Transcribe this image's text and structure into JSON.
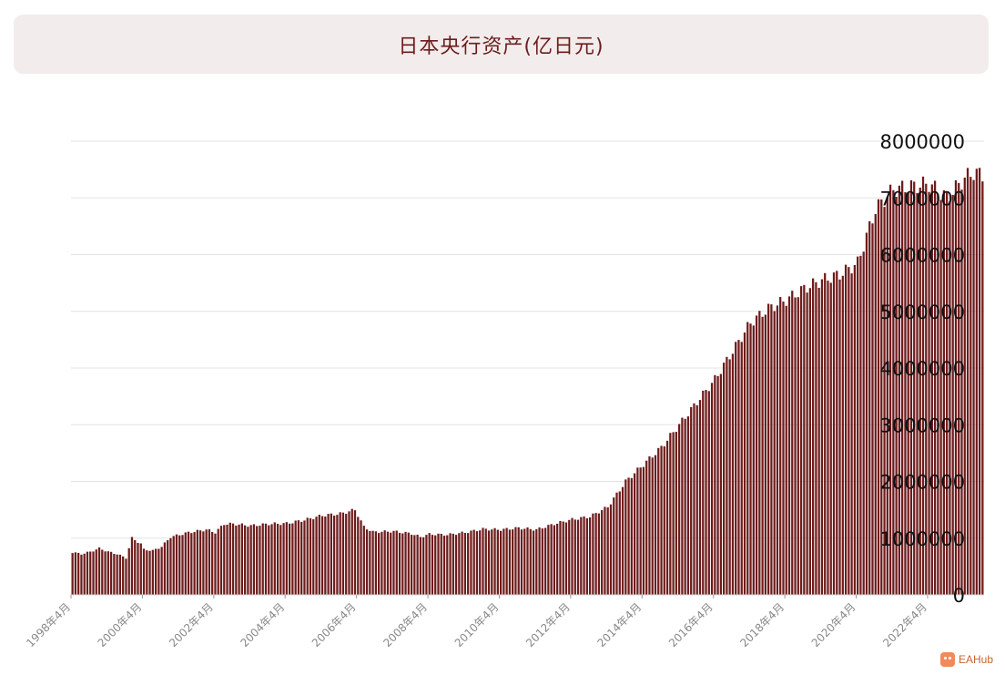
{
  "chart_data": {
    "type": "bar",
    "title": "日本央行资产(亿日元)",
    "xlabel": "",
    "ylabel": "",
    "ylim": [
      0,
      8000000
    ],
    "yticks": [
      "0",
      "1000000",
      "2000000",
      "3000000",
      "4000000",
      "5000000",
      "6000000",
      "7000000",
      "8000000"
    ],
    "xticks": [
      "1998年4月",
      "2000年4月",
      "2002年4月",
      "2004年4月",
      "2006年4月",
      "2008年4月",
      "2010年4月",
      "2012年4月",
      "2014年4月",
      "2016年4月",
      "2018年4月",
      "2020年4月",
      "2022年4月"
    ],
    "grid": true,
    "color": "#6e1c1c",
    "anchors": [
      [
        "1998-04",
        750000
      ],
      [
        "1998-07",
        720000
      ],
      [
        "1998-10",
        760000
      ],
      [
        "1999-01",
        820000
      ],
      [
        "1999-04",
        760000
      ],
      [
        "1999-07",
        720000
      ],
      [
        "1999-10",
        650000
      ],
      [
        "1999-12",
        1000000
      ],
      [
        "2000-03",
        900000
      ],
      [
        "2000-04",
        800000
      ],
      [
        "2000-07",
        780000
      ],
      [
        "2000-10",
        850000
      ],
      [
        "2001-01",
        1020000
      ],
      [
        "2001-07",
        1100000
      ],
      [
        "2002-01",
        1150000
      ],
      [
        "2002-04",
        1100000
      ],
      [
        "2002-07",
        1250000
      ],
      [
        "2002-10",
        1250000
      ],
      [
        "2003-04",
        1220000
      ],
      [
        "2003-10",
        1250000
      ],
      [
        "2004-04",
        1260000
      ],
      [
        "2004-10",
        1320000
      ],
      [
        "2005-04",
        1400000
      ],
      [
        "2005-10",
        1430000
      ],
      [
        "2006-03",
        1500000
      ],
      [
        "2006-06",
        1200000
      ],
      [
        "2006-09",
        1110000
      ],
      [
        "2007-04",
        1120000
      ],
      [
        "2007-10",
        1080000
      ],
      [
        "2008-01",
        1020000
      ],
      [
        "2008-04",
        1070000
      ],
      [
        "2008-10",
        1060000
      ],
      [
        "2009-04",
        1100000
      ],
      [
        "2009-10",
        1160000
      ],
      [
        "2010-04",
        1150000
      ],
      [
        "2010-10",
        1180000
      ],
      [
        "2011-04",
        1150000
      ],
      [
        "2011-10",
        1250000
      ],
      [
        "2012-04",
        1330000
      ],
      [
        "2012-10",
        1380000
      ],
      [
        "2013-04",
        1550000
      ],
      [
        "2013-10",
        2000000
      ],
      [
        "2014-04",
        2300000
      ],
      [
        "2014-10",
        2600000
      ],
      [
        "2015-04",
        3000000
      ],
      [
        "2015-10",
        3400000
      ],
      [
        "2016-04",
        3800000
      ],
      [
        "2016-10",
        4300000
      ],
      [
        "2017-04",
        4800000
      ],
      [
        "2017-10",
        5050000
      ],
      [
        "2018-04",
        5200000
      ],
      [
        "2018-10",
        5400000
      ],
      [
        "2019-04",
        5550000
      ],
      [
        "2019-10",
        5650000
      ],
      [
        "2020-04",
        5850000
      ],
      [
        "2020-10",
        6800000
      ],
      [
        "2021-04",
        7150000
      ],
      [
        "2021-10",
        7200000
      ],
      [
        "2022-04",
        7250000
      ],
      [
        "2022-10",
        7000000
      ],
      [
        "2023-04",
        7350000
      ],
      [
        "2023-07",
        7450000
      ],
      [
        "2023-10",
        7400000
      ]
    ]
  },
  "watermark": {
    "brand": "EAHub",
    "color": "#f08a5d"
  }
}
